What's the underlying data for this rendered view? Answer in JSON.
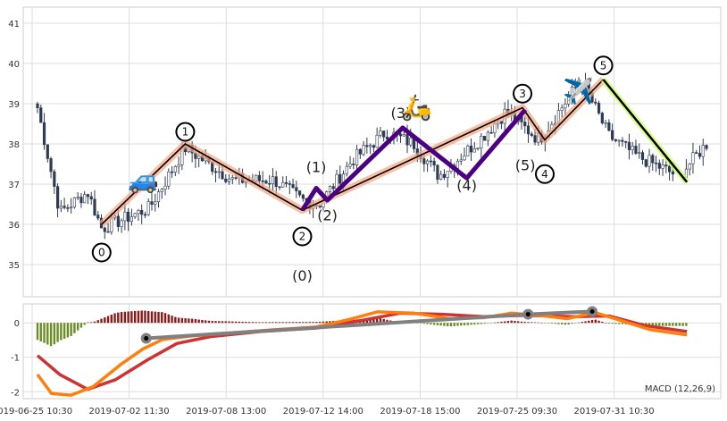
{
  "chart_data": [
    {
      "type": "candlestick",
      "ylim": [
        34.2,
        41.4
      ],
      "yticks": [
        35,
        36,
        37,
        38,
        39,
        40,
        41
      ],
      "x_labels": [
        "2019-06-25 10:30",
        "2019-07-02 11:30",
        "2019-07-08 13:00",
        "2019-07-12 14:00",
        "2019-07-18 15:00",
        "2019-07-25 09:30",
        "2019-07-31 10:30"
      ],
      "n_bars": 200,
      "price_path": [
        [
          0,
          38.9
        ],
        [
          8,
          36.3
        ],
        [
          18,
          36.8
        ],
        [
          23,
          35.9
        ],
        [
          40,
          36.4
        ],
        [
          53,
          37.9
        ],
        [
          70,
          37.1
        ],
        [
          85,
          37.1
        ],
        [
          95,
          36.6
        ],
        [
          101,
          36.5
        ],
        [
          113,
          37.6
        ],
        [
          125,
          38.3
        ],
        [
          135,
          38.0
        ],
        [
          144,
          37.2
        ],
        [
          160,
          38.2
        ],
        [
          168,
          38.8
        ],
        [
          180,
          38.1
        ],
        [
          195,
          39.6
        ],
        [
          205,
          38.2
        ],
        [
          215,
          37.7
        ],
        [
          230,
          37.2
        ],
        [
          240,
          38.0
        ]
      ],
      "primary_waves": [
        {
          "label": "0",
          "x": 23,
          "y": 36.0,
          "label_y": 35.3
        },
        {
          "label": "1",
          "x": 53,
          "y": 38.0,
          "label_y": 38.3
        },
        {
          "label": "2",
          "x": 95,
          "y": 36.35,
          "label_y": 35.7
        },
        {
          "label": "3",
          "x": 174,
          "y": 38.9,
          "label_y": 39.25
        },
        {
          "label": "4",
          "x": 182,
          "y": 38.1,
          "label_y": 37.25
        },
        {
          "label": "5",
          "x": 203,
          "y": 39.6,
          "label_y": 39.95
        }
      ],
      "final_leg": [
        [
          203,
          39.6
        ],
        [
          233,
          37.05
        ]
      ],
      "sub_waves": [
        {
          "label": "(0)",
          "x": 95,
          "y": 36.35,
          "label_y": 34.6
        },
        {
          "label": "(1)",
          "x": 100,
          "y": 36.9,
          "label_y": 37.3
        },
        {
          "label": "(2)",
          "x": 104,
          "y": 36.6,
          "label_y": 36.1
        },
        {
          "label": "(3)",
          "x": 131,
          "y": 38.4,
          "label_y": 38.65
        },
        {
          "label": "(4)",
          "x": 154,
          "y": 37.15,
          "label_y": 36.85
        },
        {
          "label": "(5)",
          "x": 175,
          "y": 38.85,
          "label_y": 37.35
        }
      ],
      "icons": [
        {
          "name": "car-icon",
          "glyph": "🚙",
          "x": 38,
          "y": 36.9
        },
        {
          "name": "scooter-icon",
          "glyph": "🛵",
          "x": 136,
          "y": 38.7
        },
        {
          "name": "airplane-icon",
          "glyph": "✈️",
          "x": 194,
          "y": 39.1
        }
      ]
    },
    {
      "type": "macd",
      "title": "MACD (12,26,9)",
      "ylim": [
        -2.2,
        0.55
      ],
      "yticks": [
        0,
        -1,
        -2
      ],
      "macd": [
        [
          0,
          -1.5
        ],
        [
          5,
          -2.05
        ],
        [
          12,
          -2.1
        ],
        [
          20,
          -1.85
        ],
        [
          30,
          -1.2
        ],
        [
          38,
          -0.75
        ],
        [
          45,
          -0.48
        ],
        [
          55,
          -0.38
        ],
        [
          68,
          -0.3
        ],
        [
          85,
          -0.2
        ],
        [
          100,
          -0.12
        ],
        [
          112,
          0.1
        ],
        [
          122,
          0.32
        ],
        [
          135,
          0.28
        ],
        [
          148,
          0.12
        ],
        [
          160,
          0.15
        ],
        [
          170,
          0.28
        ],
        [
          180,
          0.22
        ],
        [
          190,
          0.12
        ],
        [
          200,
          0.3
        ],
        [
          210,
          0.05
        ],
        [
          220,
          -0.2
        ],
        [
          233,
          -0.35
        ]
      ],
      "signal": [
        [
          0,
          -0.95
        ],
        [
          8,
          -1.5
        ],
        [
          18,
          -1.93
        ],
        [
          28,
          -1.65
        ],
        [
          40,
          -1.05
        ],
        [
          50,
          -0.6
        ],
        [
          62,
          -0.4
        ],
        [
          80,
          -0.25
        ],
        [
          100,
          -0.15
        ],
        [
          115,
          0.05
        ],
        [
          130,
          0.28
        ],
        [
          145,
          0.25
        ],
        [
          160,
          0.18
        ],
        [
          175,
          0.22
        ],
        [
          192,
          0.18
        ],
        [
          205,
          0.2
        ],
        [
          218,
          -0.08
        ],
        [
          233,
          -0.25
        ]
      ],
      "divergence_line": [
        [
          39,
          -0.45
        ],
        [
          176,
          0.25
        ],
        [
          199,
          0.33
        ]
      ],
      "divergence_points": [
        [
          39,
          -0.45
        ],
        [
          176,
          0.25
        ],
        [
          199,
          0.33
        ]
      ]
    }
  ],
  "colors": {
    "hist_pos": "#8b1a1a",
    "hist_neg": "#6b8e23",
    "macd": "#ff7f0e",
    "signal": "#cd3333",
    "candle_up": "#ffffff",
    "candle_down": "#2f3b55",
    "wave": "#000000",
    "wave_glow": "#f4a582",
    "sub_wave": "#4b0082",
    "final_glow": "#ccff66",
    "divergence": "#808080"
  }
}
